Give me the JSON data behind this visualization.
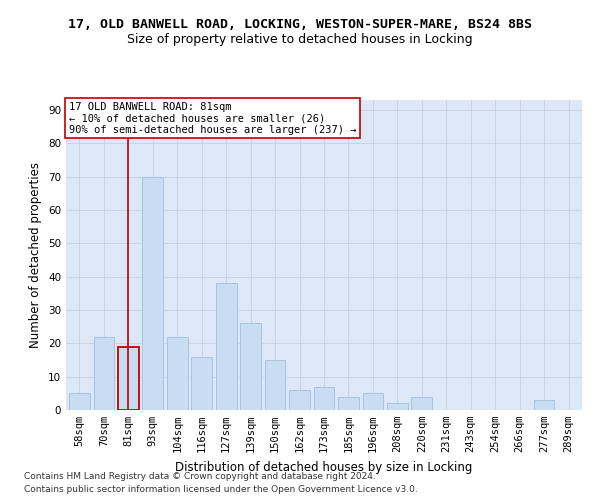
{
  "title": "17, OLD BANWELL ROAD, LOCKING, WESTON-SUPER-MARE, BS24 8BS",
  "subtitle": "Size of property relative to detached houses in Locking",
  "xlabel": "Distribution of detached houses by size in Locking",
  "ylabel": "Number of detached properties",
  "categories": [
    "58sqm",
    "70sqm",
    "81sqm",
    "93sqm",
    "104sqm",
    "116sqm",
    "127sqm",
    "139sqm",
    "150sqm",
    "162sqm",
    "173sqm",
    "185sqm",
    "196sqm",
    "208sqm",
    "220sqm",
    "231sqm",
    "243sqm",
    "254sqm",
    "266sqm",
    "277sqm",
    "289sqm"
  ],
  "values": [
    5,
    22,
    19,
    70,
    22,
    16,
    38,
    26,
    15,
    6,
    7,
    4,
    5,
    2,
    4,
    0,
    0,
    0,
    0,
    3,
    0
  ],
  "bar_color": "#c9ddf2",
  "bar_edge_color": "#a8c4e0",
  "highlight_bar_index": 2,
  "highlight_bar_edge_color": "#c00000",
  "vline_color": "#c00000",
  "annotation_text": "17 OLD BANWELL ROAD: 81sqm\n← 10% of detached houses are smaller (26)\n90% of semi-detached houses are larger (237) →",
  "annotation_box_color": "#ffffff",
  "annotation_box_edge_color": "#c00000",
  "ylim": [
    0,
    93
  ],
  "yticks": [
    0,
    10,
    20,
    30,
    40,
    50,
    60,
    70,
    80,
    90
  ],
  "grid_color": "#c8d0dc",
  "background_color": "#dce8f8",
  "footer_line1": "Contains HM Land Registry data © Crown copyright and database right 2024.",
  "footer_line2": "Contains public sector information licensed under the Open Government Licence v3.0.",
  "title_fontsize": 9.5,
  "subtitle_fontsize": 9,
  "axis_label_fontsize": 8.5,
  "tick_fontsize": 7.5,
  "annotation_fontsize": 7.5,
  "footer_fontsize": 6.5
}
